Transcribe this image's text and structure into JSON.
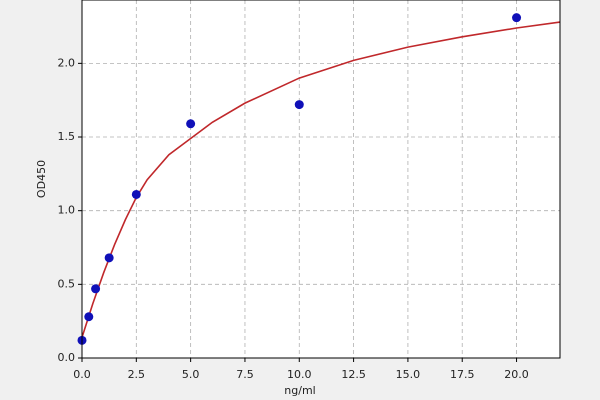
{
  "chart_data": {
    "type": "scatter",
    "xlabel": "ng/ml",
    "ylabel": "OD450",
    "xlim": [
      0,
      22
    ],
    "ylim": [
      0,
      2.43
    ],
    "xticks": [
      {
        "value": 0,
        "label": "0.0"
      },
      2.5,
      {
        "value": 5,
        "label": "5.0"
      },
      7.5,
      {
        "value": 10,
        "label": "10.0"
      },
      12.5,
      {
        "value": 15,
        "label": "15.0"
      },
      17.5,
      {
        "value": 20,
        "label": "20.0"
      }
    ],
    "yticks": [
      {
        "value": 0,
        "label": "0.0"
      },
      0.5,
      {
        "value": 1,
        "label": "1.0"
      },
      1.5,
      {
        "value": 2,
        "label": "2.0"
      }
    ],
    "grid": true,
    "series": [
      {
        "type": "line",
        "color": "#c0282b",
        "x": [
          0,
          0.5,
          1,
          1.5,
          2,
          2.5,
          3,
          4,
          5,
          6,
          7.5,
          10,
          12.5,
          15,
          17.5,
          20,
          22
        ],
        "values": [
          0.14,
          0.37,
          0.58,
          0.77,
          0.94,
          1.09,
          1.21,
          1.38,
          1.49,
          1.6,
          1.73,
          1.9,
          2.02,
          2.11,
          2.18,
          2.24,
          2.28
        ]
      },
      {
        "type": "scatter",
        "color": "#1010b8",
        "x": [
          0,
          0.3125,
          0.625,
          1.25,
          2.5,
          5,
          10,
          20
        ],
        "values": [
          0.12,
          0.28,
          0.47,
          0.68,
          1.11,
          1.59,
          1.72,
          2.31
        ]
      }
    ]
  }
}
